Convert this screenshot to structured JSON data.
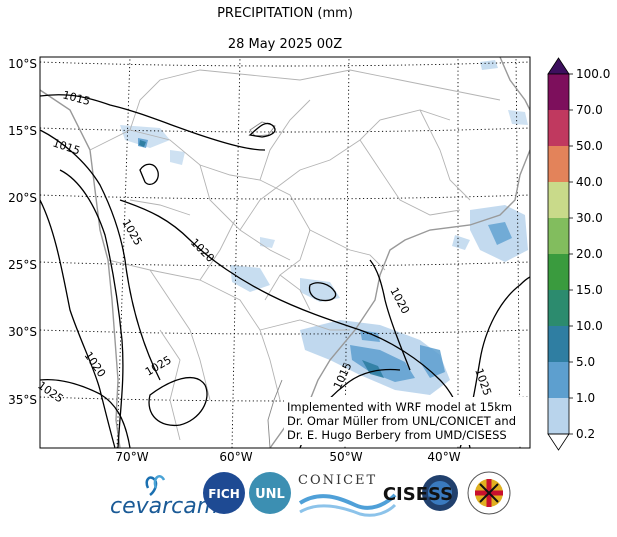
{
  "title": "PRECIPITATION (mm)",
  "subtitle": "28 May 2025 00Z",
  "lat_labels": [
    "10°S",
    "15°S",
    "20°S",
    "25°S",
    "30°S",
    "35°S"
  ],
  "lon_labels": [
    "70°W",
    "60°W",
    "50°W",
    "40°W"
  ],
  "contour_labels": [
    "1015",
    "1015",
    "1025",
    "1020",
    "1025",
    "1020",
    "1025",
    "1015",
    "1025",
    "1020"
  ],
  "colorbar": {
    "ticks": [
      "100.0",
      "70.0",
      "50.0",
      "40.0",
      "30.0",
      "20.0",
      "15.0",
      "10.0",
      "5.0",
      "1.0",
      "0.2"
    ],
    "colors": [
      "#7d0f5c",
      "#c0395f",
      "#e3835a",
      "#c9da8a",
      "#82bd5e",
      "#3a9b3e",
      "#2c8b6e",
      "#2f7ea2",
      "#5d9fcf",
      "#b9d4ec",
      "#ffffff"
    ],
    "top_arrow_color": "#3d0f5e"
  },
  "credits": {
    "line1": "Implemented with WRF model at 15km",
    "line2": "Dr. Omar Müller from UNL/CONICET and",
    "line3": "Dr. E. Hugo Berbery from UMD/CISESS"
  },
  "logos": {
    "cevarcam": "cevarcam",
    "fich": "FICH",
    "unl": "UNL",
    "conicet": "CONICET",
    "cisess": "CISESS"
  }
}
